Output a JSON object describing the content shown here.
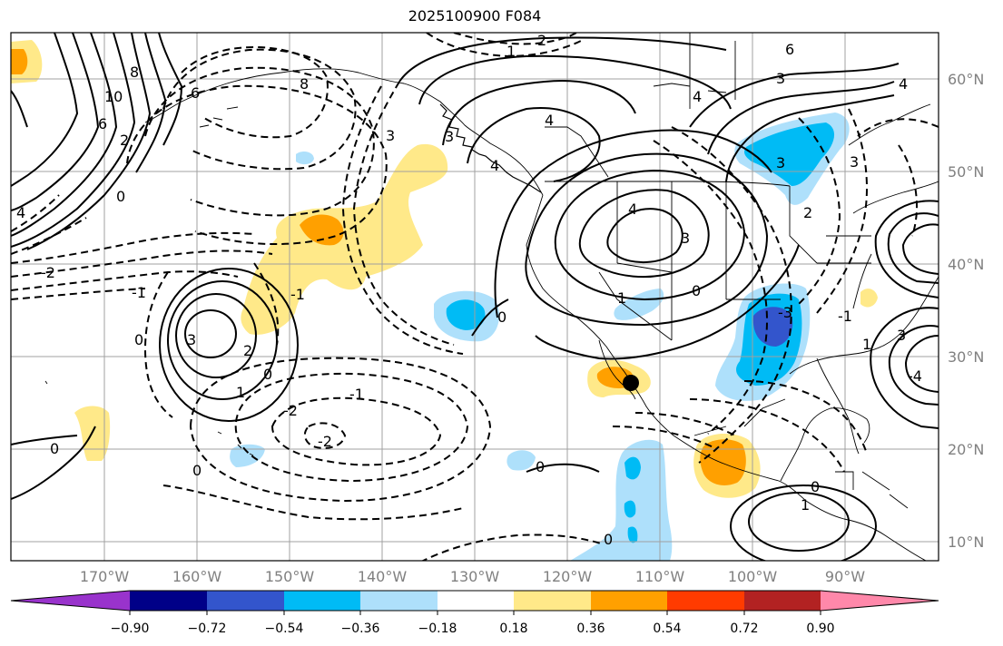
{
  "title": "2025100900 F084",
  "colors": {
    "purple": "#9933cc",
    "navy": "#000088",
    "royal": "#3355cc",
    "cyan": "#00bbf5",
    "lightblue": "#aee0fb",
    "white": "#ffffff",
    "yellow": "#ffe989",
    "orange": "#ffa000",
    "redorange": "#ff3b00",
    "firebrick": "#b22222",
    "pink": "#ff88aa"
  },
  "lon_labels": [
    "170°W",
    "160°W",
    "150°W",
    "140°W",
    "130°W",
    "120°W",
    "110°W",
    "100°W",
    "90°W"
  ],
  "lat_labels": [
    "60°N",
    "50°N",
    "40°N",
    "30°N",
    "20°N",
    "10°N"
  ],
  "colorbar": {
    "ticks": [
      "−0.90",
      "−0.72",
      "−0.54",
      "−0.36",
      "−0.18",
      "0.18",
      "0.36",
      "0.54",
      "0.72",
      "0.90"
    ]
  },
  "contour_labels": {
    "c1": "8",
    "c2": "10",
    "c3": "6",
    "c4": "2",
    "c5": "0",
    "c6": "4",
    "c7": "6",
    "c8": "8",
    "c9": "3",
    "c10": "2",
    "c11": "1",
    "c12": "4",
    "c13": "4",
    "c14": "3",
    "c15": "6",
    "c16": "4",
    "c17": "4",
    "c18": "3",
    "c19": "3",
    "c20": "3",
    "c21": "2",
    "c22": "0",
    "c23": "4",
    "c24": "3",
    "c25": "2",
    "c26": "1",
    "c27": "0",
    "c28": "-1",
    "c29": "-2",
    "c30": "-1",
    "c31": "-2",
    "c32": "0",
    "c33": "0",
    "c34": "0",
    "c35": "3",
    "c36": "0",
    "c37": "1",
    "c38": "-3",
    "c39": "1",
    "c40": "-4",
    "c41": "1",
    "c42": "-2",
    "c43": "0",
    "c44": "-1",
    "c45": "0",
    "c46": "-1",
    "c47": "3",
    "c48": "0"
  }
}
